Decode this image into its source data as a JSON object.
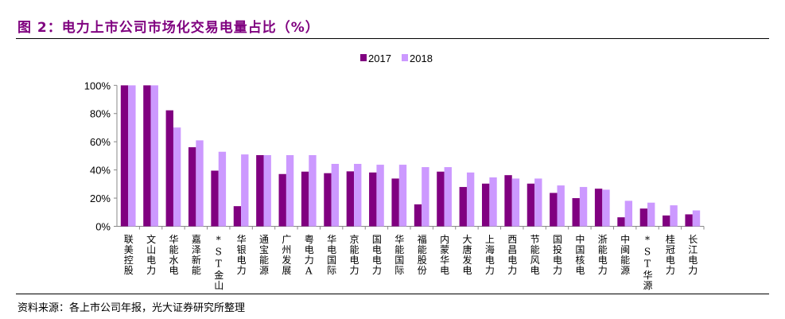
{
  "title": "图 2：电力上市公司市场化交易电量占比（%）",
  "source": "资料来源：各上市公司年报，光大证券研究所整理",
  "chart_data": {
    "type": "bar",
    "title": "图 2：电力上市公司市场化交易电量占比（%）",
    "xlabel": "",
    "ylabel": "",
    "ylim": [
      0,
      100
    ],
    "yticks": [
      "0%",
      "20%",
      "40%",
      "60%",
      "80%",
      "100%"
    ],
    "grid": false,
    "legend_position": "top",
    "categories": [
      "联美控股",
      "文山电力",
      "华能水电",
      "嘉泽新能",
      "*ST金山",
      "华银电力",
      "通宝能源",
      "广州发展",
      "粤电力A",
      "华电国际",
      "京能电力",
      "国电电力",
      "华能国际",
      "福能股份",
      "内蒙华电",
      "大唐发电",
      "上海电力",
      "西昌电力",
      "节能风电",
      "国投电力",
      "中国核电",
      "浙能电力",
      "中闽能源",
      "*ST华源",
      "桂冠电力",
      "长江电力"
    ],
    "series": [
      {
        "name": "2017",
        "color": "#800080",
        "values": [
          100,
          100,
          82.3,
          56.1,
          39.5,
          14.3,
          50.5,
          37.1,
          38.8,
          37.7,
          39.0,
          38.2,
          33.9,
          15.6,
          38.8,
          27.9,
          30.3,
          36.3,
          30.3,
          23.7,
          20.0,
          26.7,
          6.4,
          12.6,
          7.7,
          8.5
        ]
      },
      {
        "name": "2018",
        "color": "#CC99FF",
        "values": [
          100,
          100,
          70.1,
          61.0,
          52.9,
          51.0,
          50.5,
          50.5,
          50.5,
          44.3,
          44.3,
          43.7,
          43.7,
          42.0,
          42.0,
          38.2,
          34.7,
          33.9,
          33.9,
          29.0,
          27.9,
          26.0,
          18.1,
          16.8,
          14.9,
          11.3
        ]
      }
    ]
  }
}
